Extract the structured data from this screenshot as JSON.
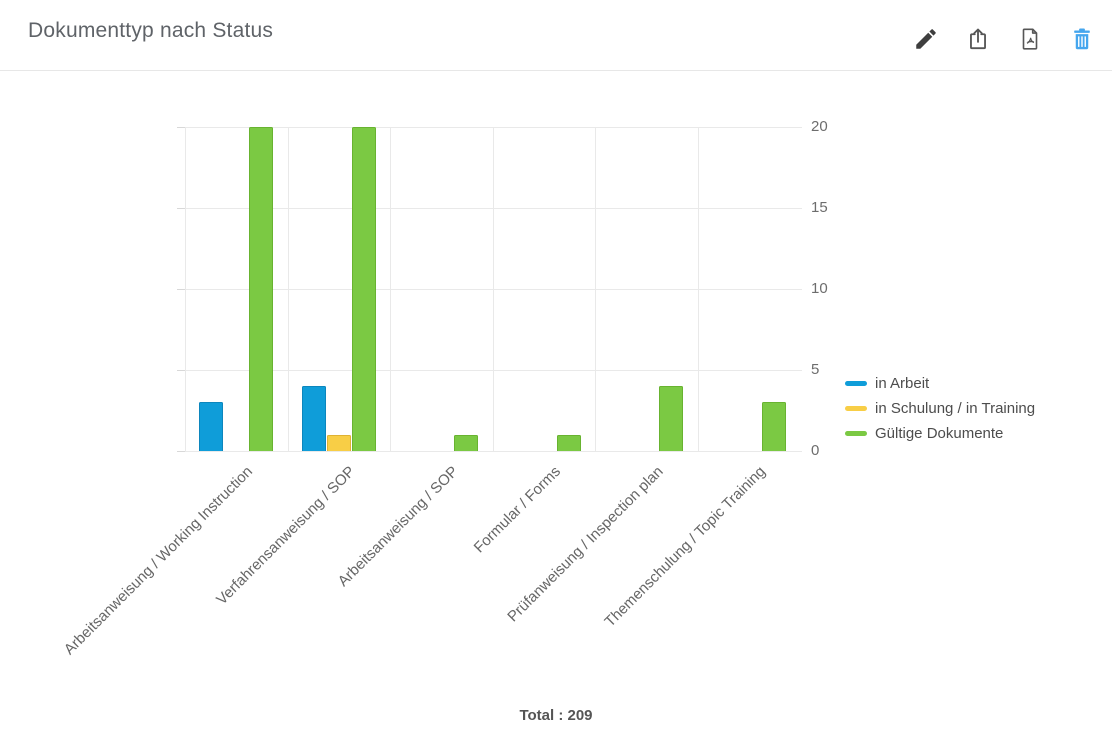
{
  "header": {
    "title": "Dokumenttyp nach Status",
    "actions": [
      {
        "label": "edit",
        "icon": "pencil-icon"
      },
      {
        "label": "export",
        "icon": "share-icon"
      },
      {
        "label": "export-pdf",
        "icon": "pdf-icon"
      },
      {
        "label": "delete",
        "icon": "trash-icon"
      }
    ]
  },
  "chart_data": {
    "type": "bar",
    "title": "Dokumenttyp nach Status",
    "categories": [
      "Arbeitsanweisung / Working Instruction",
      "Verfahrensanweisung / SOP",
      "Arbeitsanweisung / SOP",
      "Formular / Forms",
      "Prüfanweisung / Inspection plan",
      "Themenschulung / Topic Training"
    ],
    "series": [
      {
        "name": "in Arbeit",
        "color": "#0f9dd9",
        "border": "#0c86bd",
        "values": [
          3,
          4,
          0,
          0,
          0,
          0
        ]
      },
      {
        "name": "in Schulung / in Training",
        "color": "#f8ce46",
        "border": "#dfb233",
        "values": [
          0,
          1,
          0,
          0,
          0,
          0
        ]
      },
      {
        "name": "Gültige Dokumente",
        "color": "#7bc943",
        "border": "#68b330",
        "values": [
          20,
          20,
          1,
          1,
          4,
          3
        ]
      }
    ],
    "ylim": [
      0,
      20
    ],
    "yticks": [
      0,
      5,
      10,
      15,
      20
    ],
    "grid": true,
    "legend_position": "right",
    "xlabel": "",
    "ylabel": ""
  },
  "footer": {
    "total_label": "Total : 209"
  },
  "colors": {
    "grid": "#e9e9e9",
    "axis_tick": "#d8d8d8",
    "title_text": "#5f6368",
    "axis_text": "#666666",
    "icon_gray": "#555555",
    "trash_blue": "#45a6ee"
  }
}
